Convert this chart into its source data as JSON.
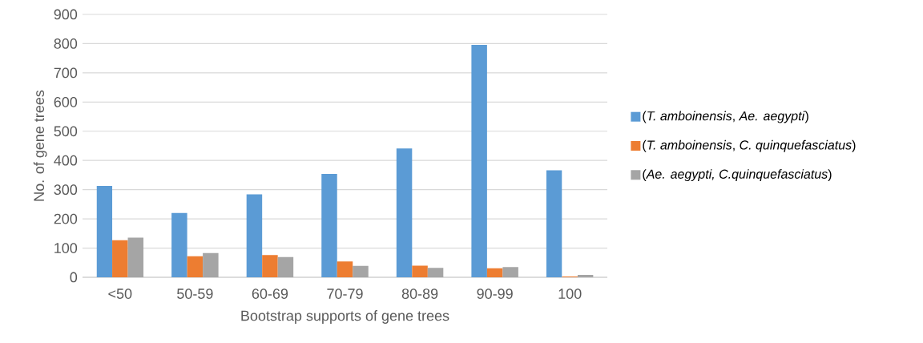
{
  "chart_data": {
    "type": "bar",
    "xlabel": "Bootstrap supports of gene trees",
    "ylabel": "No. of gene trees",
    "categories": [
      "<50",
      "50-59",
      "60-69",
      "70-79",
      "80-89",
      "90-99",
      "100"
    ],
    "series": [
      {
        "name": "(*T. amboinensis*, *Ae. aegypti*)",
        "color": "#5b9bd5",
        "values": [
          313,
          220,
          284,
          354,
          441,
          796,
          366
        ]
      },
      {
        "name": "(*T. amboinensis*, *C. quinquefasciatus*)",
        "color": "#ed7d31",
        "values": [
          127,
          72,
          76,
          54,
          40,
          31,
          3
        ]
      },
      {
        "name": "(*Ae. aegypti, C.quinquefasciatus*)",
        "color": "#a5a5a5",
        "values": [
          136,
          83,
          69,
          39,
          32,
          35,
          8
        ]
      }
    ],
    "ylim": [
      0,
      900
    ],
    "yticks": [
      0,
      100,
      200,
      300,
      400,
      500,
      600,
      700,
      800,
      900
    ],
    "grid": "y",
    "legend": "right"
  }
}
